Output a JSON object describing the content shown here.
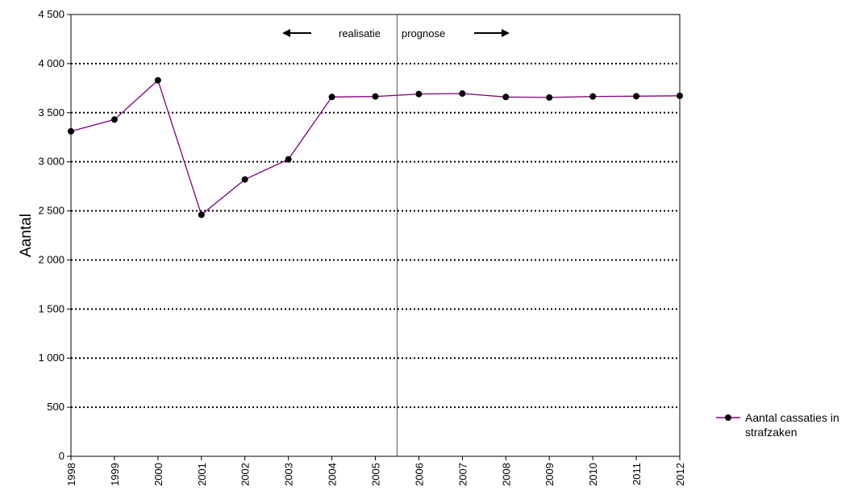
{
  "chart_data": {
    "type": "line",
    "title": "",
    "xlabel": "",
    "ylabel": "Aantal",
    "x": [
      "1998",
      "1999",
      "2000",
      "2001",
      "2002",
      "2003",
      "2004",
      "2005",
      "2006",
      "2007",
      "2008",
      "2009",
      "2010",
      "2011",
      "2012"
    ],
    "series": [
      {
        "name": "Aantal cassaties in strafzaken",
        "values": [
          3310,
          3430,
          3830,
          2460,
          2820,
          3025,
          3660,
          3665,
          3690,
          3695,
          3660,
          3655,
          3665,
          3668,
          3672
        ],
        "color": "#800080"
      }
    ],
    "ylim": [
      0,
      4500
    ],
    "yticks": [
      0,
      500,
      1000,
      1500,
      2000,
      2500,
      3000,
      3500,
      4000,
      4500
    ],
    "ytick_labels": [
      "0",
      "500",
      "1 000",
      "1 500",
      "2 000",
      "2 500",
      "3 000",
      "3 500",
      "4 000",
      "4 500"
    ],
    "grid": "horizontal dotted",
    "divider_between": [
      "2005",
      "2006"
    ],
    "annotations": {
      "left": "realisatie",
      "right": "prognose"
    },
    "legend": {
      "position": "right",
      "label_lines": [
        "Aantal cassaties in",
        "strafzaken"
      ]
    }
  }
}
